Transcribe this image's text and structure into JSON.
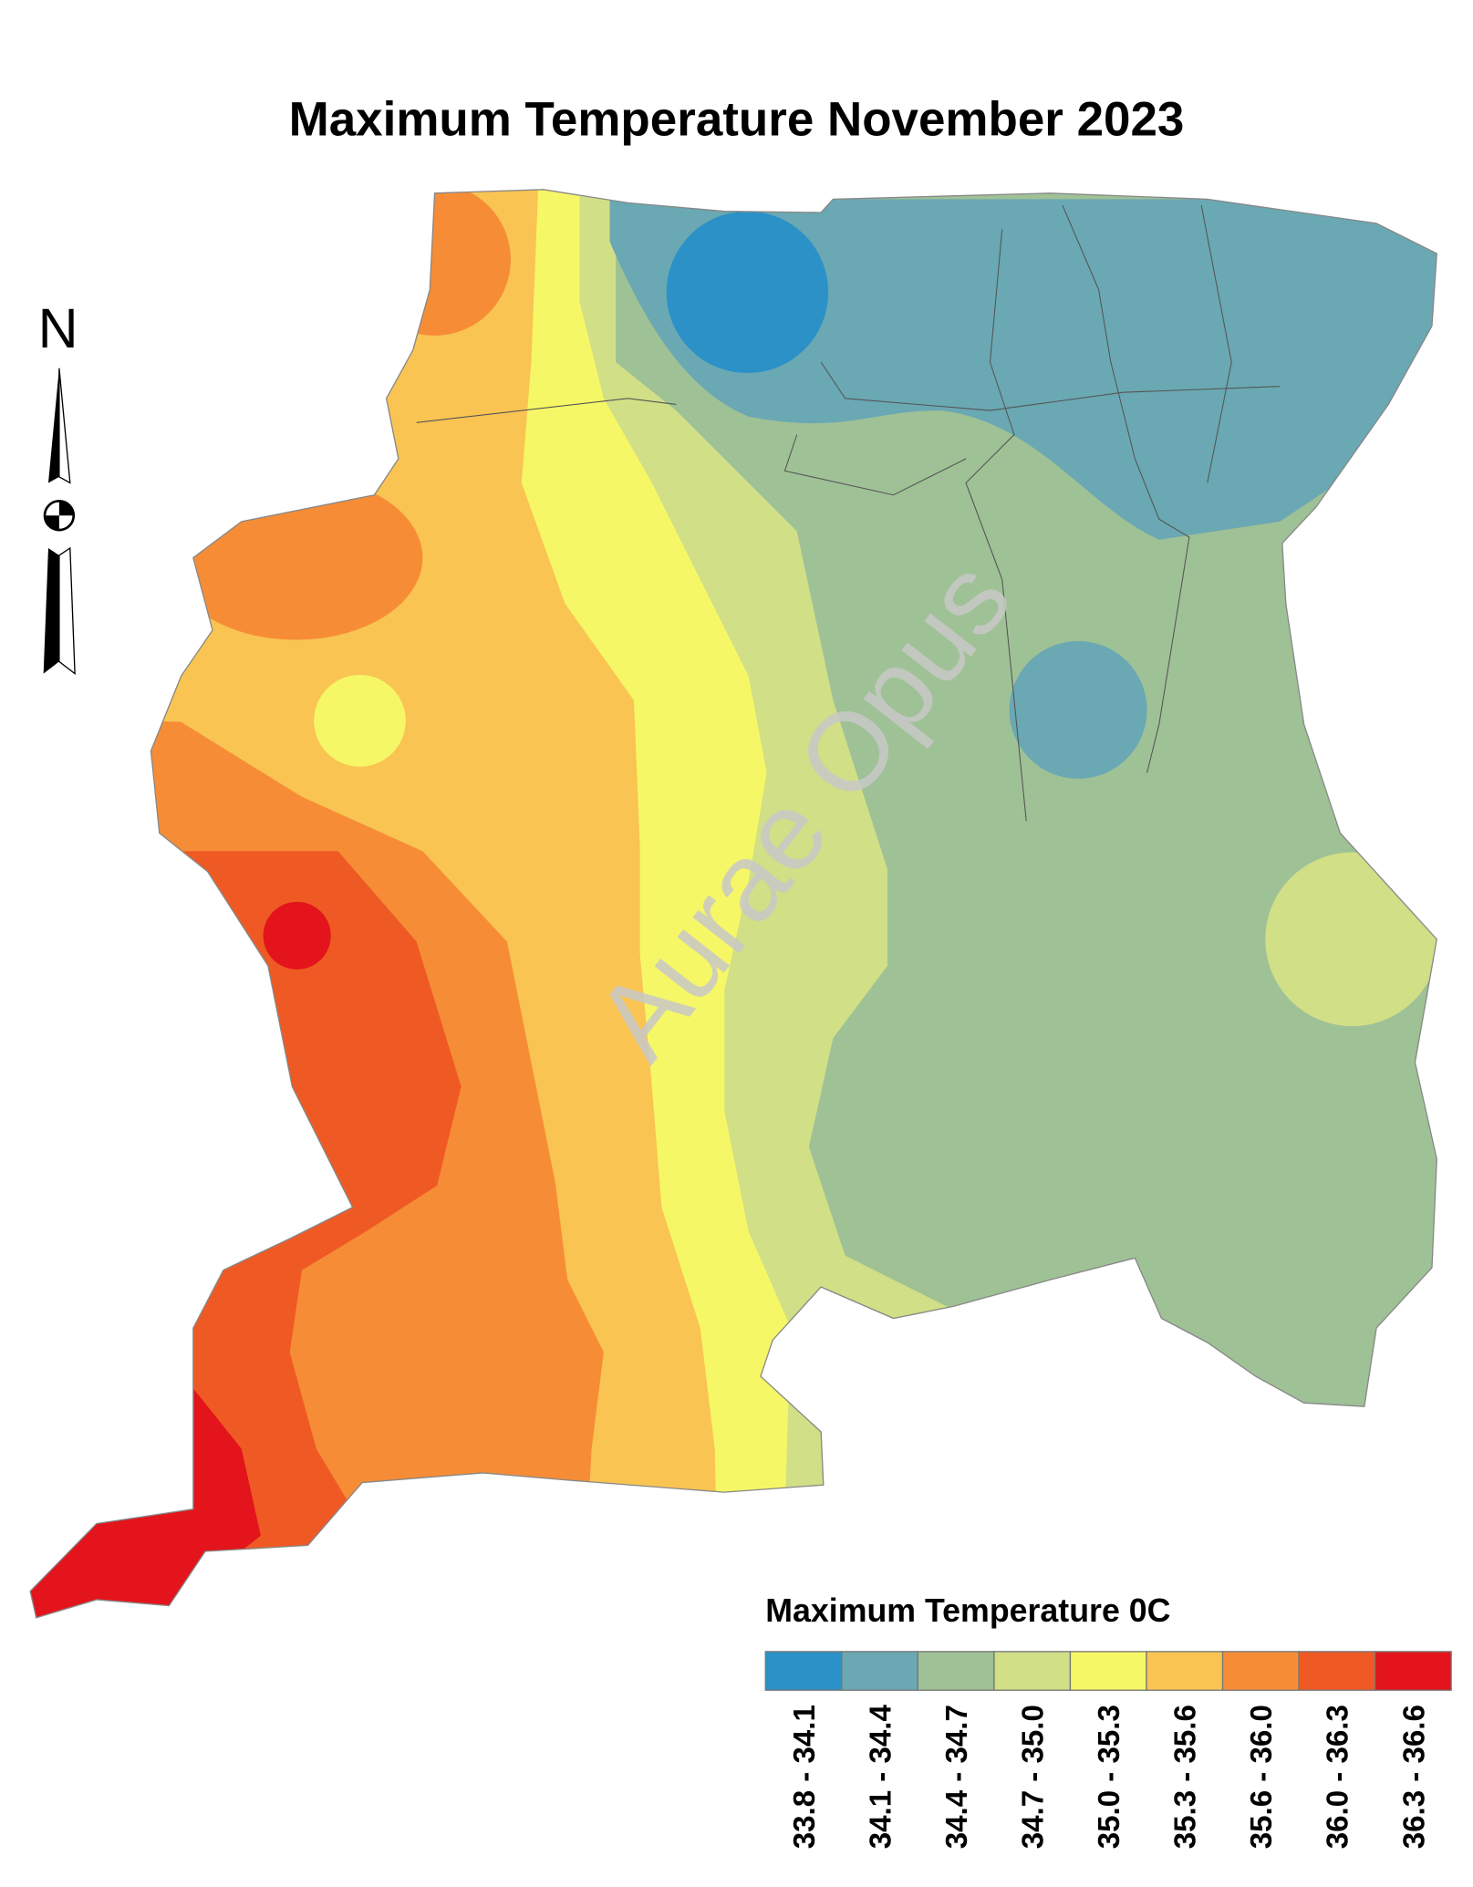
{
  "title": "Maximum Temperature November 2023",
  "north_label": "N",
  "watermark": "Aurae Opus",
  "legend": {
    "title": "Maximum Temperature 0C",
    "classes": [
      {
        "label": "33.8 - 34.1",
        "color": "#2b91c7"
      },
      {
        "label": "34.1 - 34.4",
        "color": "#6aa8b3"
      },
      {
        "label": "34.4 - 34.7",
        "color": "#9fc196"
      },
      {
        "label": "34.7 - 35.0",
        "color": "#d1df86"
      },
      {
        "label": "35.0 - 35.3",
        "color": "#f6f766"
      },
      {
        "label": "35.3 - 35.6",
        "color": "#f9c452"
      },
      {
        "label": "35.6 - 36.0",
        "color": "#f68d36"
      },
      {
        "label": "36.0 - 36.3",
        "color": "#ef5a24"
      },
      {
        "label": "36.3 - 36.6",
        "color": "#e3141b"
      }
    ]
  }
}
